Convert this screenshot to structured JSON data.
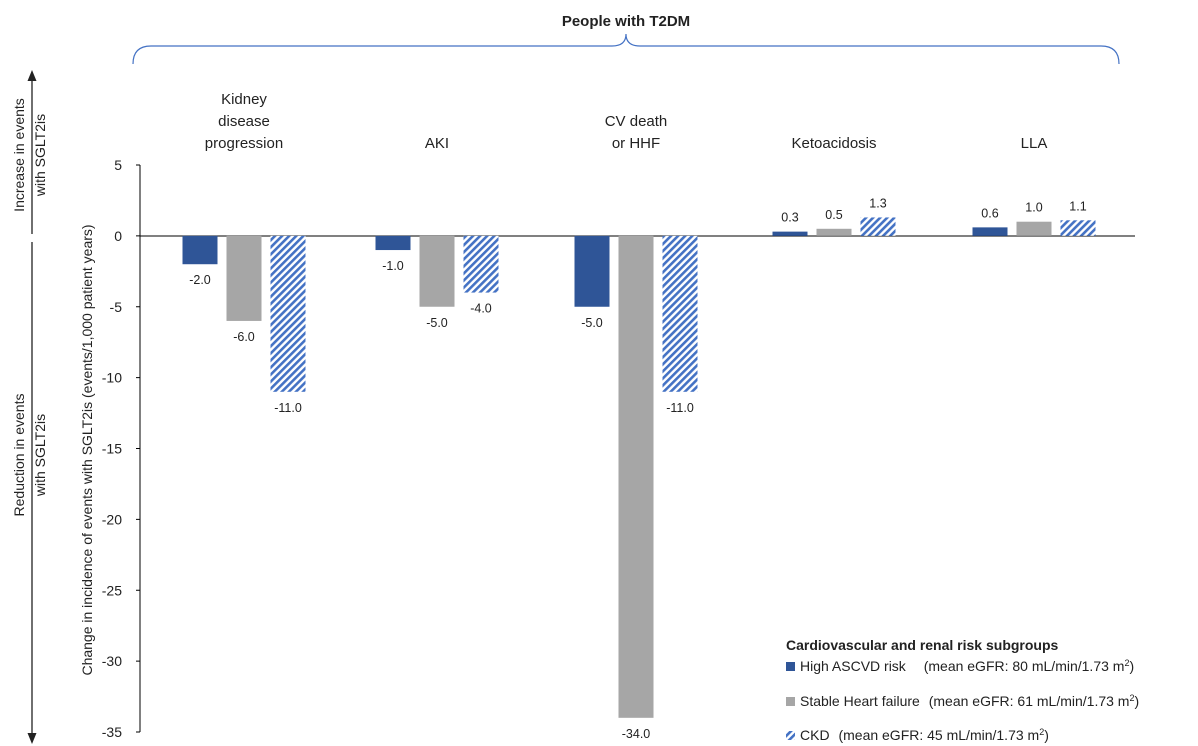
{
  "header": {
    "title": "People with T2DM"
  },
  "side_labels": {
    "increase_line1": "Increase in events",
    "increase_line2": "with SGLT2is",
    "reduction_line1": "Reduction in events",
    "reduction_line2": "with SGLT2is"
  },
  "chart_data": {
    "type": "bar",
    "ylabel": "Change in incidence of events with SGLT2is (events/1,000 patient years)",
    "ylim": [
      -35,
      5
    ],
    "yticks": [
      5,
      0,
      -5,
      -10,
      -15,
      -20,
      -25,
      -30,
      -35
    ],
    "ytick_labels": [
      "5",
      "0",
      "-5",
      "-10",
      "-15",
      "-20",
      "-25",
      "-30",
      "-35"
    ],
    "categories": [
      [
        "Kidney",
        "disease",
        "progression"
      ],
      [
        "AKI"
      ],
      [
        "CV death",
        "or HHF"
      ],
      [
        "Ketoacidosis"
      ],
      [
        "LLA"
      ]
    ],
    "series": [
      {
        "name": "High ASCVD risk",
        "values": [
          -2.0,
          -1.0,
          -5.0,
          0.3,
          0.6
        ],
        "labels": [
          "-2.0",
          "-1.0",
          "-5.0",
          "0.3",
          "0.6"
        ],
        "color": "#2F5597",
        "pattern": "solid"
      },
      {
        "name": "Stable Heart failure",
        "values": [
          -6.0,
          -5.0,
          -34.0,
          0.5,
          1.0
        ],
        "labels": [
          "-6.0",
          "-5.0",
          "-34.0",
          "0.5",
          "1.0"
        ],
        "color": "#A6A6A6",
        "pattern": "solid"
      },
      {
        "name": "CKD",
        "values": [
          -11.0,
          -4.0,
          -11.0,
          1.3,
          1.1
        ],
        "labels": [
          "-11.0",
          "-4.0",
          "-11.0",
          "1.3",
          "1.1"
        ],
        "color": "#4472C4",
        "pattern": "hatched"
      }
    ],
    "legend": {
      "title": "Cardiovascular and renal risk subgroups",
      "placement": "bottom-right",
      "entries": [
        {
          "name": "High ASCVD risk",
          "note": "(mean eGFR: 80 mL/min/1.73 m",
          "sup": "2",
          "close": ")"
        },
        {
          "name": "Stable Heart failure",
          "note": "(mean eGFR: 61 mL/min/1.73 m",
          "sup": "2",
          "close": ")"
        },
        {
          "name": "CKD",
          "note": "(mean eGFR: 45 mL/min/1.73 m",
          "sup": "2",
          "close": ")"
        }
      ]
    },
    "grid": false
  }
}
